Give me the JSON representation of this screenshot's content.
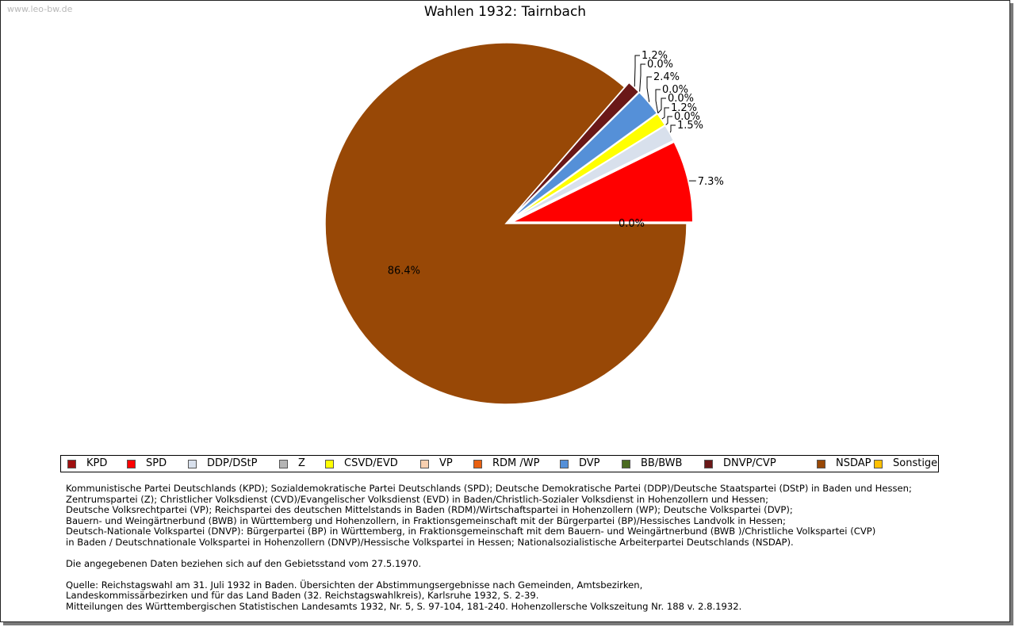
{
  "watermark": "www.leo-bw.de",
  "chart_data": {
    "type": "pie",
    "title": "Wahlen 1932: Tairnbach",
    "slices": [
      {
        "name": "KPD",
        "value": 0.0,
        "label": "0.0%",
        "color": "#a01010"
      },
      {
        "name": "SPD",
        "value": 7.3,
        "label": "7.3%",
        "color": "#ff0000"
      },
      {
        "name": "DDP/DStP",
        "value": 1.5,
        "label": "1.5%",
        "color": "#d8e0ec"
      },
      {
        "name": "Z",
        "value": 0.0,
        "label": "0.0%",
        "color": "#b4b4b4"
      },
      {
        "name": "CSVD/EVD",
        "value": 1.2,
        "label": "1.2%",
        "color": "#ffff00"
      },
      {
        "name": "VP",
        "value": 0.0,
        "label": "0.0%",
        "color": "#f8d0b0"
      },
      {
        "name": "RDM /WP",
        "value": 0.0,
        "label": "0.0%",
        "color": "#e86010"
      },
      {
        "name": "DVP",
        "value": 2.4,
        "label": "2.4%",
        "color": "#5590d8"
      },
      {
        "name": "BB/BWB",
        "value": 0.0,
        "label": "0.0%",
        "color": "#4a6a20"
      },
      {
        "name": "DNVP/CVP",
        "value": 1.2,
        "label": "1.2%",
        "color": "#6a1818"
      },
      {
        "name": "NSDAP",
        "value": 86.4,
        "label": "86.4%",
        "color": "#984806"
      },
      {
        "name": "Sonstige",
        "value": 0.0,
        "label": "0.0%",
        "color": "#ffc000"
      }
    ],
    "legend_position": "bottom"
  },
  "notes": {
    "parties": [
      "Kommunistische Partei Deutschlands (KPD); Sozialdemokratische Partei Deutschlands (SPD); Deutsche Demokratische Partei (DDP)/Deutsche Staatspartei (DStP) in Baden und Hessen;",
      "Zentrumspartei (Z); Christlicher Volksdienst (CVD)/Evangelischer Volksdienst (EVD) in Baden/Christlich-Sozialer Volksdienst in Hohenzollern und Hessen;",
      "Deutsche Volksrechtpartei (VP); Reichspartei des deutschen Mittelstands in Baden (RDM)/Wirtschaftspartei in Hohenzollern (WP); Deutsche Volkspartei (DVP);",
      "Bauern- und Weingärtnerbund (BWB) in Württemberg und Hohenzollern, in Fraktionsgemeinschaft mit der Bürgerpartei (BP)/Hessisches Landvolk in Hessen;",
      "Deutsch-Nationale Volkspartei (DNVP): Bürgerpartei (BP) in Württemberg, in Fraktionsgemeinschaft mit dem Bauern- und Weingärtnerbund (BWB )/Christliche Volkspartei (CVP)",
      "in Baden / Deutschnationale Volkspartei in Hohenzollern (DNVP)/Hessische Volkspartei in Hessen; Nationalsozialistische Arbeiterpartei Deutschlands (NSDAP)."
    ],
    "territory": "Die angegebenen Daten beziehen sich auf den Gebietsstand vom 27.5.1970.",
    "source": [
      "Quelle: Reichstagswahl am 31. Juli 1932 in Baden. Übersichten der Abstimmungsergebnisse nach Gemeinden, Amtsbezirken,",
      "Landeskommissärbezirken und für das Land Baden (32. Reichstagswahlkreis), Karlsruhe 1932, S. 2-39.",
      "Mitteilungen des Württembergischen Statistischen Landesamts 1932, Nr. 5, S. 97-104, 181-240. Hohenzollersche Volkszeitung Nr. 188 v. 2.8.1932."
    ]
  }
}
